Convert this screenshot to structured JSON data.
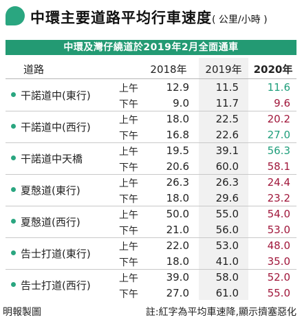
{
  "header": {
    "title": "中環主要道路平均行車速度",
    "unit": "( 公里/小時 )"
  },
  "banner": "中環及灣仔繞道於2019年2月全面通車",
  "table": {
    "headers": [
      "道路",
      "2018年",
      "2019年",
      "2020年"
    ],
    "rows": [
      {
        "road": "干諾道中(東行)",
        "am": {
          "period": "上午",
          "y2018": "12.9",
          "y2019": "11.5",
          "y2020": "11.6",
          "color": "green"
        },
        "pm": {
          "period": "下午",
          "y2018": "9.0",
          "y2019": "11.7",
          "y2020": "9.6",
          "color": "red"
        }
      },
      {
        "road": "干諾道中(西行)",
        "am": {
          "period": "上午",
          "y2018": "18.0",
          "y2019": "22.5",
          "y2020": "20.2",
          "color": "red"
        },
        "pm": {
          "period": "下午",
          "y2018": "16.8",
          "y2019": "22.6",
          "y2020": "27.0",
          "color": "green"
        }
      },
      {
        "road": "干諾道中天橋",
        "am": {
          "period": "上午",
          "y2018": "19.5",
          "y2019": "39.1",
          "y2020": "56.3",
          "color": "green"
        },
        "pm": {
          "period": "下午",
          "y2018": "20.6",
          "y2019": "60.0",
          "y2020": "58.1",
          "color": "red"
        }
      },
      {
        "road": "夏慤道(東行)",
        "am": {
          "period": "上午",
          "y2018": "26.3",
          "y2019": "26.3",
          "y2020": "24.4",
          "color": "red"
        },
        "pm": {
          "period": "下午",
          "y2018": "18.0",
          "y2019": "29.6",
          "y2020": "23.2",
          "color": "red"
        }
      },
      {
        "road": "夏慤道(西行)",
        "am": {
          "period": "上午",
          "y2018": "50.0",
          "y2019": "55.0",
          "y2020": "54.0",
          "color": "red"
        },
        "pm": {
          "period": "下午",
          "y2018": "21.0",
          "y2019": "56.0",
          "y2020": "53.0",
          "color": "red"
        }
      },
      {
        "road": "告士打道(東行)",
        "am": {
          "period": "上午",
          "y2018": "22.0",
          "y2019": "53.0",
          "y2020": "48.0",
          "color": "red"
        },
        "pm": {
          "period": "下午",
          "y2018": "18.0",
          "y2019": "41.0",
          "y2020": "35.0",
          "color": "red"
        }
      },
      {
        "road": "告士打道(西行)",
        "am": {
          "period": "上午",
          "y2018": "39.0",
          "y2019": "58.0",
          "y2020": "52.0",
          "color": "red"
        },
        "pm": {
          "period": "下午",
          "y2018": "27.0",
          "y2019": "61.0",
          "y2020": "55.0",
          "color": "red"
        }
      }
    ]
  },
  "footer": {
    "source": "明報製圖",
    "note": "註:紅字為平均車速降,顯示擠塞惡化"
  },
  "colors": {
    "accent": "#2aa680",
    "banner": "#239a73",
    "increase": "#1f9e7b",
    "decrease": "#a0163a"
  }
}
